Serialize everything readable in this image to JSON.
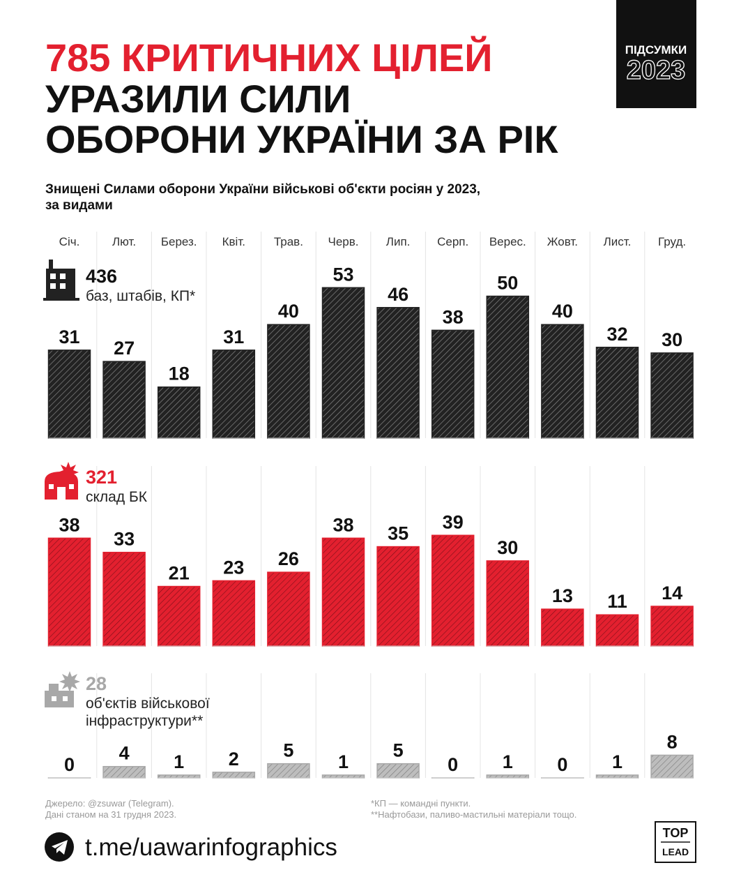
{
  "title": [
    "785 КРИТИЧНИХ ЦІЛЕЙ",
    "УРАЗИЛИ СИЛИ",
    "ОБОРОНИ УКРАЇНИ ЗА РІК"
  ],
  "badge": {
    "top": "ПІДСУМКИ",
    "year": "2023"
  },
  "subtitle": [
    "Знищені Силами оборони України військові об'єкти росіян у 2023,",
    "за видами"
  ],
  "chart_data": [
    {
      "type": "bar",
      "categories": [
        "Січ.",
        "Лют.",
        "Берез.",
        "Квіт.",
        "Трав.",
        "Черв.",
        "Лип.",
        "Серп.",
        "Верес.",
        "Жовт.",
        "Лист.",
        "Груд."
      ],
      "total": 436,
      "label": [
        "баз, штабів, КП*"
      ],
      "color": "#222222",
      "values": [
        31,
        27,
        18,
        31,
        40,
        53,
        46,
        38,
        50,
        40,
        32,
        30
      ]
    },
    {
      "type": "bar",
      "total": 321,
      "label": [
        "склад БК"
      ],
      "color": "#e3202f",
      "values": [
        38,
        33,
        21,
        23,
        26,
        38,
        35,
        39,
        30,
        13,
        11,
        14
      ]
    },
    {
      "type": "bar",
      "total": 28,
      "label": [
        "об'єктів військової",
        "інфраструктури**"
      ],
      "color": "#a8a8a8",
      "values": [
        0,
        4,
        1,
        2,
        5,
        1,
        5,
        0,
        1,
        0,
        1,
        8
      ]
    }
  ],
  "footer": {
    "source": [
      "Джерело: @zsuwar (Telegram).",
      "Дані станом на 31 грудня 2023."
    ],
    "notes": [
      "*КП — командні пункти.",
      "**Нафтобази, паливо-мастильні матеріали тощо."
    ],
    "link": "t.me/uawarinfographics",
    "logo": [
      "TOP",
      "LEAD"
    ]
  }
}
